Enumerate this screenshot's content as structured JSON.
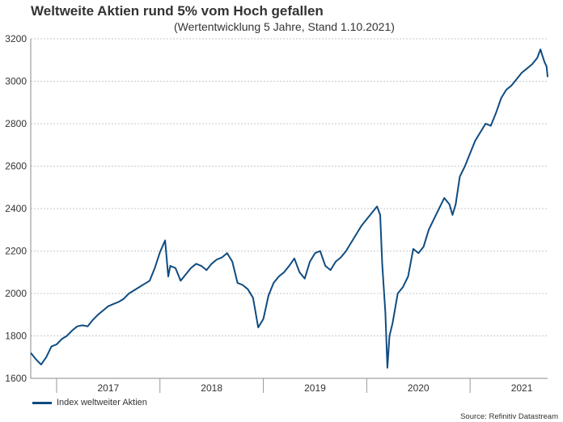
{
  "chart_data": {
    "type": "line",
    "title": "Weltweite Aktien rund 5% vom Hoch gefallen",
    "subtitle": "(Wertentwicklung 5 Jahre, Stand 1.10.2021)",
    "xlabel": "",
    "ylabel": "",
    "ylim": [
      1600,
      3200
    ],
    "yticks": [
      1600,
      1800,
      2000,
      2200,
      2400,
      2600,
      2800,
      3000,
      3200
    ],
    "xlim": [
      2016.75,
      2021.75
    ],
    "xtick_labels": [
      {
        "x": 2017.5,
        "label": "2017"
      },
      {
        "x": 2018.5,
        "label": "2018"
      },
      {
        "x": 2019.5,
        "label": "2019"
      },
      {
        "x": 2020.5,
        "label": "2020"
      },
      {
        "x": 2021.5,
        "label": "2021"
      }
    ],
    "year_separators": [
      2017,
      2018,
      2019,
      2020,
      2021
    ],
    "grid": true,
    "legend_position": "bottom-left",
    "series": [
      {
        "name": "Index weltweiter Aktien",
        "color": "#0f4c81",
        "points": [
          [
            2016.75,
            1720
          ],
          [
            2016.8,
            1690
          ],
          [
            2016.85,
            1665
          ],
          [
            2016.9,
            1700
          ],
          [
            2016.95,
            1750
          ],
          [
            2017.0,
            1760
          ],
          [
            2017.05,
            1785
          ],
          [
            2017.1,
            1800
          ],
          [
            2017.15,
            1825
          ],
          [
            2017.2,
            1845
          ],
          [
            2017.25,
            1850
          ],
          [
            2017.3,
            1845
          ],
          [
            2017.35,
            1875
          ],
          [
            2017.4,
            1900
          ],
          [
            2017.45,
            1920
          ],
          [
            2017.5,
            1940
          ],
          [
            2017.55,
            1950
          ],
          [
            2017.6,
            1960
          ],
          [
            2017.65,
            1975
          ],
          [
            2017.7,
            2000
          ],
          [
            2017.75,
            2015
          ],
          [
            2017.8,
            2030
          ],
          [
            2017.85,
            2045
          ],
          [
            2017.9,
            2060
          ],
          [
            2017.95,
            2120
          ],
          [
            2018.0,
            2195
          ],
          [
            2018.05,
            2250
          ],
          [
            2018.08,
            2080
          ],
          [
            2018.1,
            2130
          ],
          [
            2018.15,
            2120
          ],
          [
            2018.2,
            2060
          ],
          [
            2018.25,
            2090
          ],
          [
            2018.3,
            2120
          ],
          [
            2018.35,
            2140
          ],
          [
            2018.4,
            2130
          ],
          [
            2018.45,
            2110
          ],
          [
            2018.5,
            2140
          ],
          [
            2018.55,
            2160
          ],
          [
            2018.6,
            2170
          ],
          [
            2018.65,
            2190
          ],
          [
            2018.7,
            2150
          ],
          [
            2018.75,
            2050
          ],
          [
            2018.8,
            2040
          ],
          [
            2018.85,
            2020
          ],
          [
            2018.9,
            1980
          ],
          [
            2018.95,
            1840
          ],
          [
            2019.0,
            1880
          ],
          [
            2019.05,
            1990
          ],
          [
            2019.1,
            2050
          ],
          [
            2019.15,
            2080
          ],
          [
            2019.2,
            2100
          ],
          [
            2019.25,
            2130
          ],
          [
            2019.3,
            2165
          ],
          [
            2019.35,
            2100
          ],
          [
            2019.4,
            2070
          ],
          [
            2019.45,
            2150
          ],
          [
            2019.5,
            2190
          ],
          [
            2019.55,
            2200
          ],
          [
            2019.6,
            2130
          ],
          [
            2019.65,
            2110
          ],
          [
            2019.7,
            2150
          ],
          [
            2019.75,
            2170
          ],
          [
            2019.8,
            2200
          ],
          [
            2019.85,
            2240
          ],
          [
            2019.9,
            2280
          ],
          [
            2019.95,
            2320
          ],
          [
            2020.0,
            2350
          ],
          [
            2020.05,
            2380
          ],
          [
            2020.1,
            2410
          ],
          [
            2020.13,
            2370
          ],
          [
            2020.15,
            2140
          ],
          [
            2020.18,
            1910
          ],
          [
            2020.2,
            1650
          ],
          [
            2020.22,
            1800
          ],
          [
            2020.25,
            1860
          ],
          [
            2020.3,
            2000
          ],
          [
            2020.35,
            2030
          ],
          [
            2020.4,
            2080
          ],
          [
            2020.45,
            2210
          ],
          [
            2020.5,
            2190
          ],
          [
            2020.55,
            2220
          ],
          [
            2020.6,
            2300
          ],
          [
            2020.65,
            2350
          ],
          [
            2020.7,
            2400
          ],
          [
            2020.75,
            2450
          ],
          [
            2020.8,
            2420
          ],
          [
            2020.83,
            2370
          ],
          [
            2020.86,
            2420
          ],
          [
            2020.9,
            2550
          ],
          [
            2020.95,
            2600
          ],
          [
            2021.0,
            2660
          ],
          [
            2021.05,
            2720
          ],
          [
            2021.1,
            2760
          ],
          [
            2021.15,
            2800
          ],
          [
            2021.2,
            2790
          ],
          [
            2021.25,
            2850
          ],
          [
            2021.3,
            2920
          ],
          [
            2021.35,
            2960
          ],
          [
            2021.4,
            2980
          ],
          [
            2021.45,
            3010
          ],
          [
            2021.5,
            3040
          ],
          [
            2021.55,
            3060
          ],
          [
            2021.6,
            3080
          ],
          [
            2021.65,
            3110
          ],
          [
            2021.68,
            3150
          ],
          [
            2021.7,
            3120
          ],
          [
            2021.72,
            3090
          ],
          [
            2021.74,
            3070
          ],
          [
            2021.75,
            3020
          ]
        ]
      }
    ]
  },
  "legend": {
    "label": "Index weltweiter Aktien"
  },
  "source": "Source: Refinitiv Datastream"
}
